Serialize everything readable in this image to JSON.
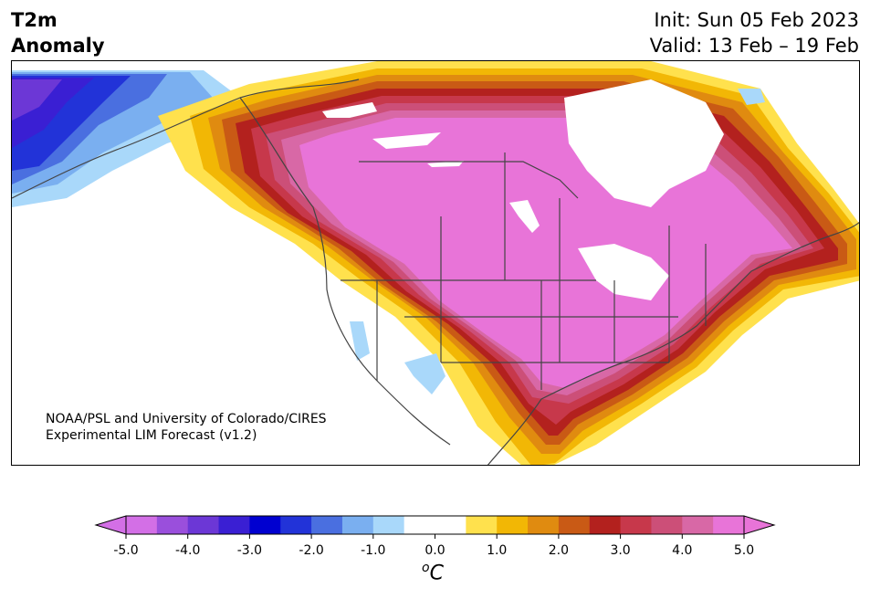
{
  "title": {
    "variable": "T2m",
    "kind": "Anomaly",
    "init": "Init: Sun 05 Feb 2023",
    "valid": "Valid: 13 Feb – 19 Feb"
  },
  "credit": {
    "line1": "NOAA/PSL and University of Colorado/CIRES",
    "line2": "Experimental LIM Forecast (v1.2)"
  },
  "colorbar": {
    "unit_prefix": "o",
    "unit_main": "C",
    "ticks": [
      "-5.0",
      "-4.0",
      "-3.0",
      "-2.0",
      "-1.0",
      "0.0",
      "1.0",
      "2.0",
      "3.0",
      "4.0",
      "5.0"
    ],
    "colors": [
      "#d36fe6",
      "#9a4fdc",
      "#6c37d6",
      "#3a1fd3",
      "#0000d0",
      "#2233d8",
      "#4a6fe0",
      "#7aaff0",
      "#a9d8fa",
      "#ffffff",
      "#ffffff",
      "#ffe14d",
      "#f2b705",
      "#e08b10",
      "#c95a15",
      "#b3211e",
      "#c7384b",
      "#cc4f78",
      "#d868a6",
      "#e874d8"
    ],
    "under_color": "#d36fe6",
    "over_color": "#e874d8"
  }
}
